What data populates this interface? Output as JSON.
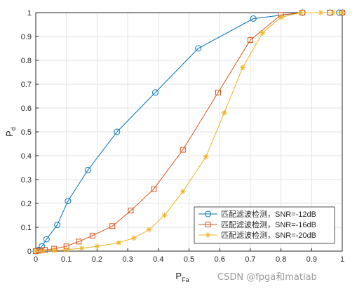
{
  "chart_data": {
    "type": "line",
    "xlabel": "P",
    "xlabel_sub": "Fa",
    "ylabel": "P",
    "ylabel_sub": "d",
    "xlim": [
      0,
      1
    ],
    "ylim": [
      0,
      1
    ],
    "xticks": [
      "0",
      "0.1",
      "0.2",
      "0.3",
      "0.4",
      "0.5",
      "0.6",
      "0.7",
      "0.8",
      "0.9",
      "1"
    ],
    "yticks": [
      "0",
      "0.1",
      "0.2",
      "0.3",
      "0.4",
      "0.5",
      "0.6",
      "0.7",
      "0.8",
      "0.9",
      "1"
    ],
    "grid": true,
    "legend_position": "bottom-right",
    "series": [
      {
        "name": "匹配滤波检测，SNR=-12dB",
        "color": "#0072BD",
        "marker": "circle",
        "x": [
          0,
          0.01,
          0.02,
          0.035,
          0.07,
          0.105,
          0.17,
          0.265,
          0.39,
          0.53,
          0.71,
          0.87,
          0.96,
          0.99,
          1
        ],
        "y": [
          0,
          0.005,
          0.02,
          0.05,
          0.11,
          0.21,
          0.34,
          0.5,
          0.665,
          0.85,
          0.975,
          1.0,
          1.0,
          1.0,
          1.0
        ]
      },
      {
        "name": "匹配滤波检测，SNR=-16dB",
        "color": "#D95319",
        "marker": "square",
        "x": [
          0,
          0.01,
          0.03,
          0.06,
          0.1,
          0.14,
          0.185,
          0.25,
          0.31,
          0.385,
          0.48,
          0.595,
          0.7,
          0.8,
          0.87,
          0.96,
          1
        ],
        "y": [
          0,
          0.002,
          0.005,
          0.01,
          0.02,
          0.04,
          0.065,
          0.105,
          0.17,
          0.26,
          0.425,
          0.665,
          0.885,
          0.99,
          1.0,
          1.0,
          1.0
        ]
      },
      {
        "name": "匹配滤波检测，SNR=-20dB",
        "color": "#EDB120",
        "marker": "star",
        "x": [
          0,
          0.02,
          0.06,
          0.1,
          0.15,
          0.2,
          0.27,
          0.32,
          0.37,
          0.42,
          0.48,
          0.555,
          0.615,
          0.675,
          0.74,
          0.8,
          0.865,
          0.93,
          0.97,
          1
        ],
        "y": [
          0,
          0.001,
          0.003,
          0.006,
          0.012,
          0.02,
          0.035,
          0.055,
          0.09,
          0.15,
          0.25,
          0.395,
          0.58,
          0.77,
          0.915,
          0.98,
          1.0,
          1.0,
          1.0,
          1.0
        ]
      }
    ]
  },
  "watermark": "CSDN @fpga和matlab"
}
